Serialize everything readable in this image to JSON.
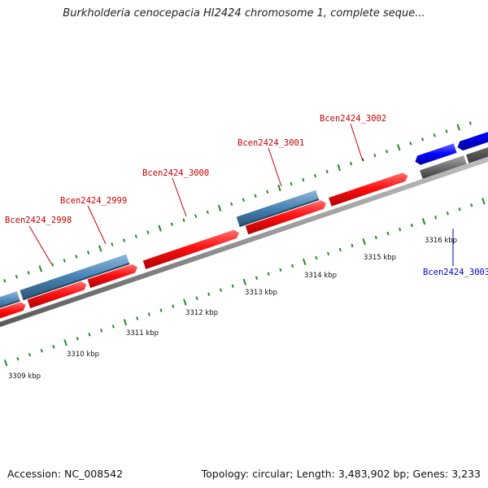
{
  "title": "Burkholderia cenocepacia HI2424 chromosome 1, complete seque...",
  "footer": {
    "accession": "Accession: NC_008542",
    "summary": "Topology: circular; Length: 3,483,902 bp; Genes: 3,233"
  },
  "colors": {
    "forward_gene": "#ff0000",
    "reverse_gene": "#4682b4",
    "highlight_gene": "#0000ff",
    "backbone": "#808080",
    "ticks": "#228b22",
    "red_label": "#cc0000",
    "blue_label": "#0000cc"
  },
  "gene_labels": [
    {
      "text": "Bcen2424_2998",
      "color": "red"
    },
    {
      "text": "Bcen2424_2999",
      "color": "red"
    },
    {
      "text": "Bcen2424_3000",
      "color": "red"
    },
    {
      "text": "Bcen2424_3001",
      "color": "red"
    },
    {
      "text": "Bcen2424_3002",
      "color": "red"
    },
    {
      "text": "Bcen2424_3003",
      "color": "blue"
    }
  ],
  "scale_labels": [
    "3309 kbp",
    "3310 kbp",
    "3311 kbp",
    "3312 kbp",
    "3313 kbp",
    "3314 kbp",
    "3315 kbp",
    "3316 kbp"
  ]
}
